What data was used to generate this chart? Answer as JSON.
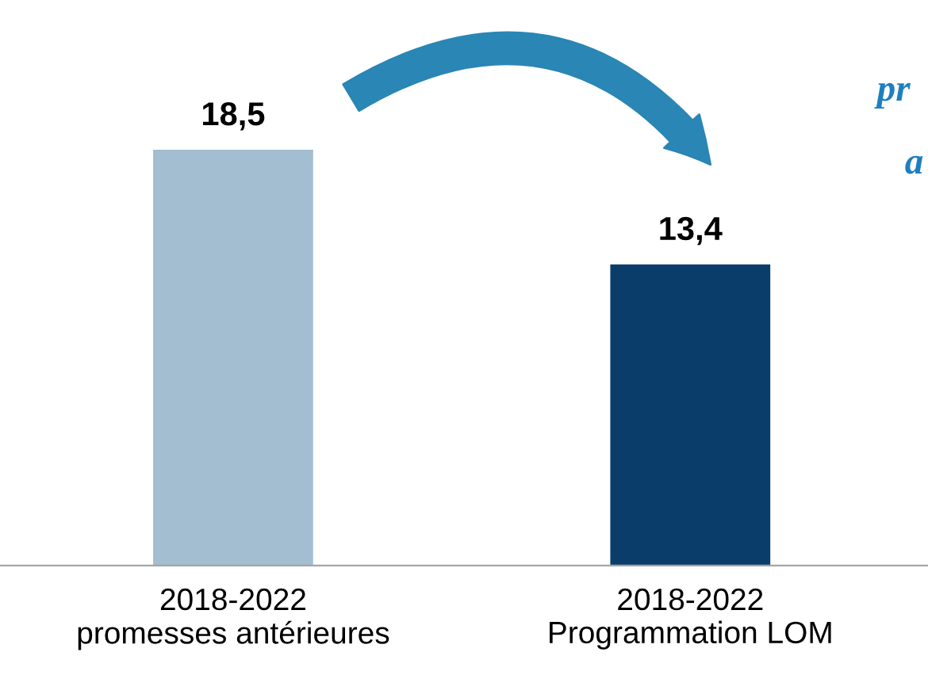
{
  "chart_data": {
    "type": "bar",
    "categories": [
      "2018-2022\npromesses antérieures",
      "2018-2022\nProgrammation LOM"
    ],
    "values": [
      18.5,
      13.4
    ],
    "colors": [
      "#a3bdd1",
      "#0b3d6b"
    ],
    "value_labels": [
      "18,5",
      "13,4"
    ],
    "annotations": [
      "pr",
      "a"
    ],
    "grid": false,
    "legend": false
  }
}
